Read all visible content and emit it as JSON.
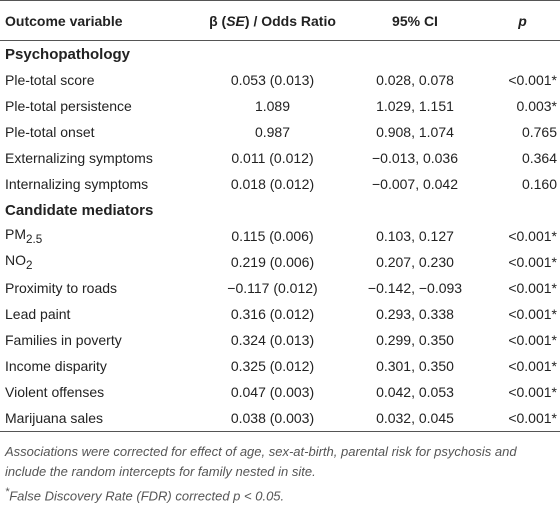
{
  "table": {
    "header": {
      "outcome": "Outcome variable",
      "beta": [
        "β (",
        "SE",
        ") / Odds Ratio"
      ],
      "ci": "95% CI",
      "p": "p"
    },
    "sections": [
      {
        "title": "Psychopathology",
        "rows": [
          {
            "label": [
              "Ple-total score"
            ],
            "beta": "0.053 (0.013)",
            "ci": "0.028, 0.078",
            "p": "<0.001*"
          },
          {
            "label": [
              "Ple-total persistence"
            ],
            "beta": "1.089",
            "ci": "1.029, 1.151",
            "p": "0.003*"
          },
          {
            "label": [
              "Ple-total onset"
            ],
            "beta": "0.987",
            "ci": "0.908, 1.074",
            "p": "0.765"
          },
          {
            "label": [
              "Externalizing symptoms"
            ],
            "beta": "0.011 (0.012)",
            "ci": "−0.013, 0.036",
            "p": "0.364"
          },
          {
            "label": [
              "Internalizing symptoms"
            ],
            "beta": "0.018 (0.012)",
            "ci": "−0.007, 0.042",
            "p": "0.160"
          }
        ]
      },
      {
        "title": "Candidate mediators",
        "rows": [
          {
            "label": [
              "PM",
              "2.5"
            ],
            "beta": "0.115 (0.006)",
            "ci": "0.103, 0.127",
            "p": "<0.001*"
          },
          {
            "label": [
              "NO",
              "2"
            ],
            "beta": "0.219 (0.006)",
            "ci": "0.207, 0.230",
            "p": "<0.001*"
          },
          {
            "label": [
              "Proximity to roads"
            ],
            "beta": "−0.117 (0.012)",
            "ci": "−0.142, −0.093",
            "p": "<0.001*"
          },
          {
            "label": [
              "Lead paint"
            ],
            "beta": "0.316 (0.012)",
            "ci": "0.293, 0.338",
            "p": "<0.001*"
          },
          {
            "label": [
              "Families in poverty"
            ],
            "beta": "0.324 (0.013)",
            "ci": "0.299, 0.350",
            "p": "<0.001*"
          },
          {
            "label": [
              "Income disparity"
            ],
            "beta": "0.325 (0.012)",
            "ci": "0.301, 0.350",
            "p": "<0.001*"
          },
          {
            "label": [
              "Violent offenses"
            ],
            "beta": "0.047 (0.003)",
            "ci": "0.042, 0.053",
            "p": "<0.001*"
          },
          {
            "label": [
              "Marijuana sales"
            ],
            "beta": "0.038 (0.003)",
            "ci": "0.032, 0.045",
            "p": "<0.001*"
          }
        ]
      }
    ]
  },
  "notes": {
    "note1": "Associations were corrected for effect of age, sex-at-birth, parental risk for psychosis and include the random intercepts for family nested in site.",
    "note2": [
      "*",
      "False Discovery Rate (FDR) corrected ",
      "p",
      " < 0.05."
    ]
  }
}
